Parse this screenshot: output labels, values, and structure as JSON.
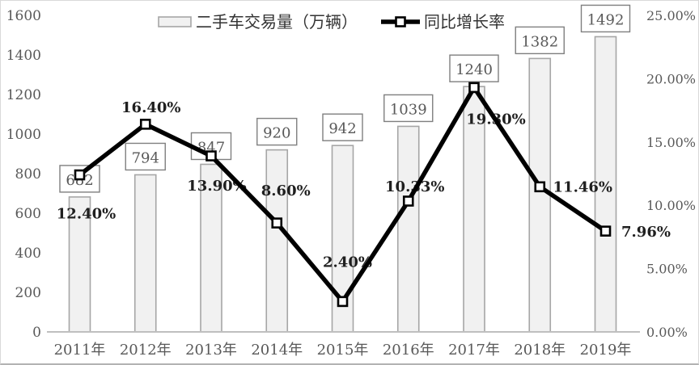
{
  "chart_data": {
    "type": "bar+line combo",
    "title": "",
    "categories": [
      "2011年",
      "2012年",
      "2013年",
      "2014年",
      "2015年",
      "2016年",
      "2017年",
      "2018年",
      "2019年"
    ],
    "series": [
      {
        "name": "二手车交易量（万辆）",
        "type": "bar",
        "yaxis": "left",
        "values": [
          682,
          794,
          847,
          920,
          942,
          1039,
          1240,
          1382,
          1492
        ],
        "data_labels": [
          "682",
          "794",
          "847",
          "920",
          "942",
          "1039",
          "1240",
          "1382",
          "1492"
        ]
      },
      {
        "name": "同比增长率",
        "type": "line",
        "yaxis": "right",
        "values": [
          12.4,
          16.4,
          13.9,
          8.6,
          2.4,
          10.33,
          19.3,
          11.46,
          7.96
        ],
        "data_labels": [
          "12.40%",
          "16.40%",
          "13.90%",
          "8.60%",
          "2.40%",
          "10.33%",
          "19.30%",
          "11.46%",
          "7.96%"
        ]
      }
    ],
    "left_axis": {
      "min": 0,
      "max": 1600,
      "tick_step": 200,
      "tick_labels": [
        "0",
        "200",
        "400",
        "600",
        "800",
        "1000",
        "1200",
        "1400",
        "1600"
      ]
    },
    "right_axis": {
      "min": 0,
      "max": 25,
      "tick_step": 5,
      "tick_labels": [
        "0.00%",
        "5.00%",
        "10.00%",
        "15.00%",
        "20.00%",
        "25.00%"
      ]
    },
    "legend": {
      "position": "top-center",
      "items": [
        "二手车交易量（万辆）",
        "同比增长率"
      ]
    },
    "grid": "off",
    "colors": {
      "bar_fill": "#f1f1f1",
      "bar_border": "#a6a6a6",
      "line": "#000000",
      "marker_fill": "#ffffff",
      "marker_border": "#000000",
      "label_box_fill": "#ffffff",
      "label_box_border": "#7f7f7f",
      "data_label_text": "#595959",
      "pct_label_text": "#1f1f1f",
      "axis_text": "#595959",
      "axis_line": "#bfbfbf",
      "background": "#ffffff"
    }
  }
}
